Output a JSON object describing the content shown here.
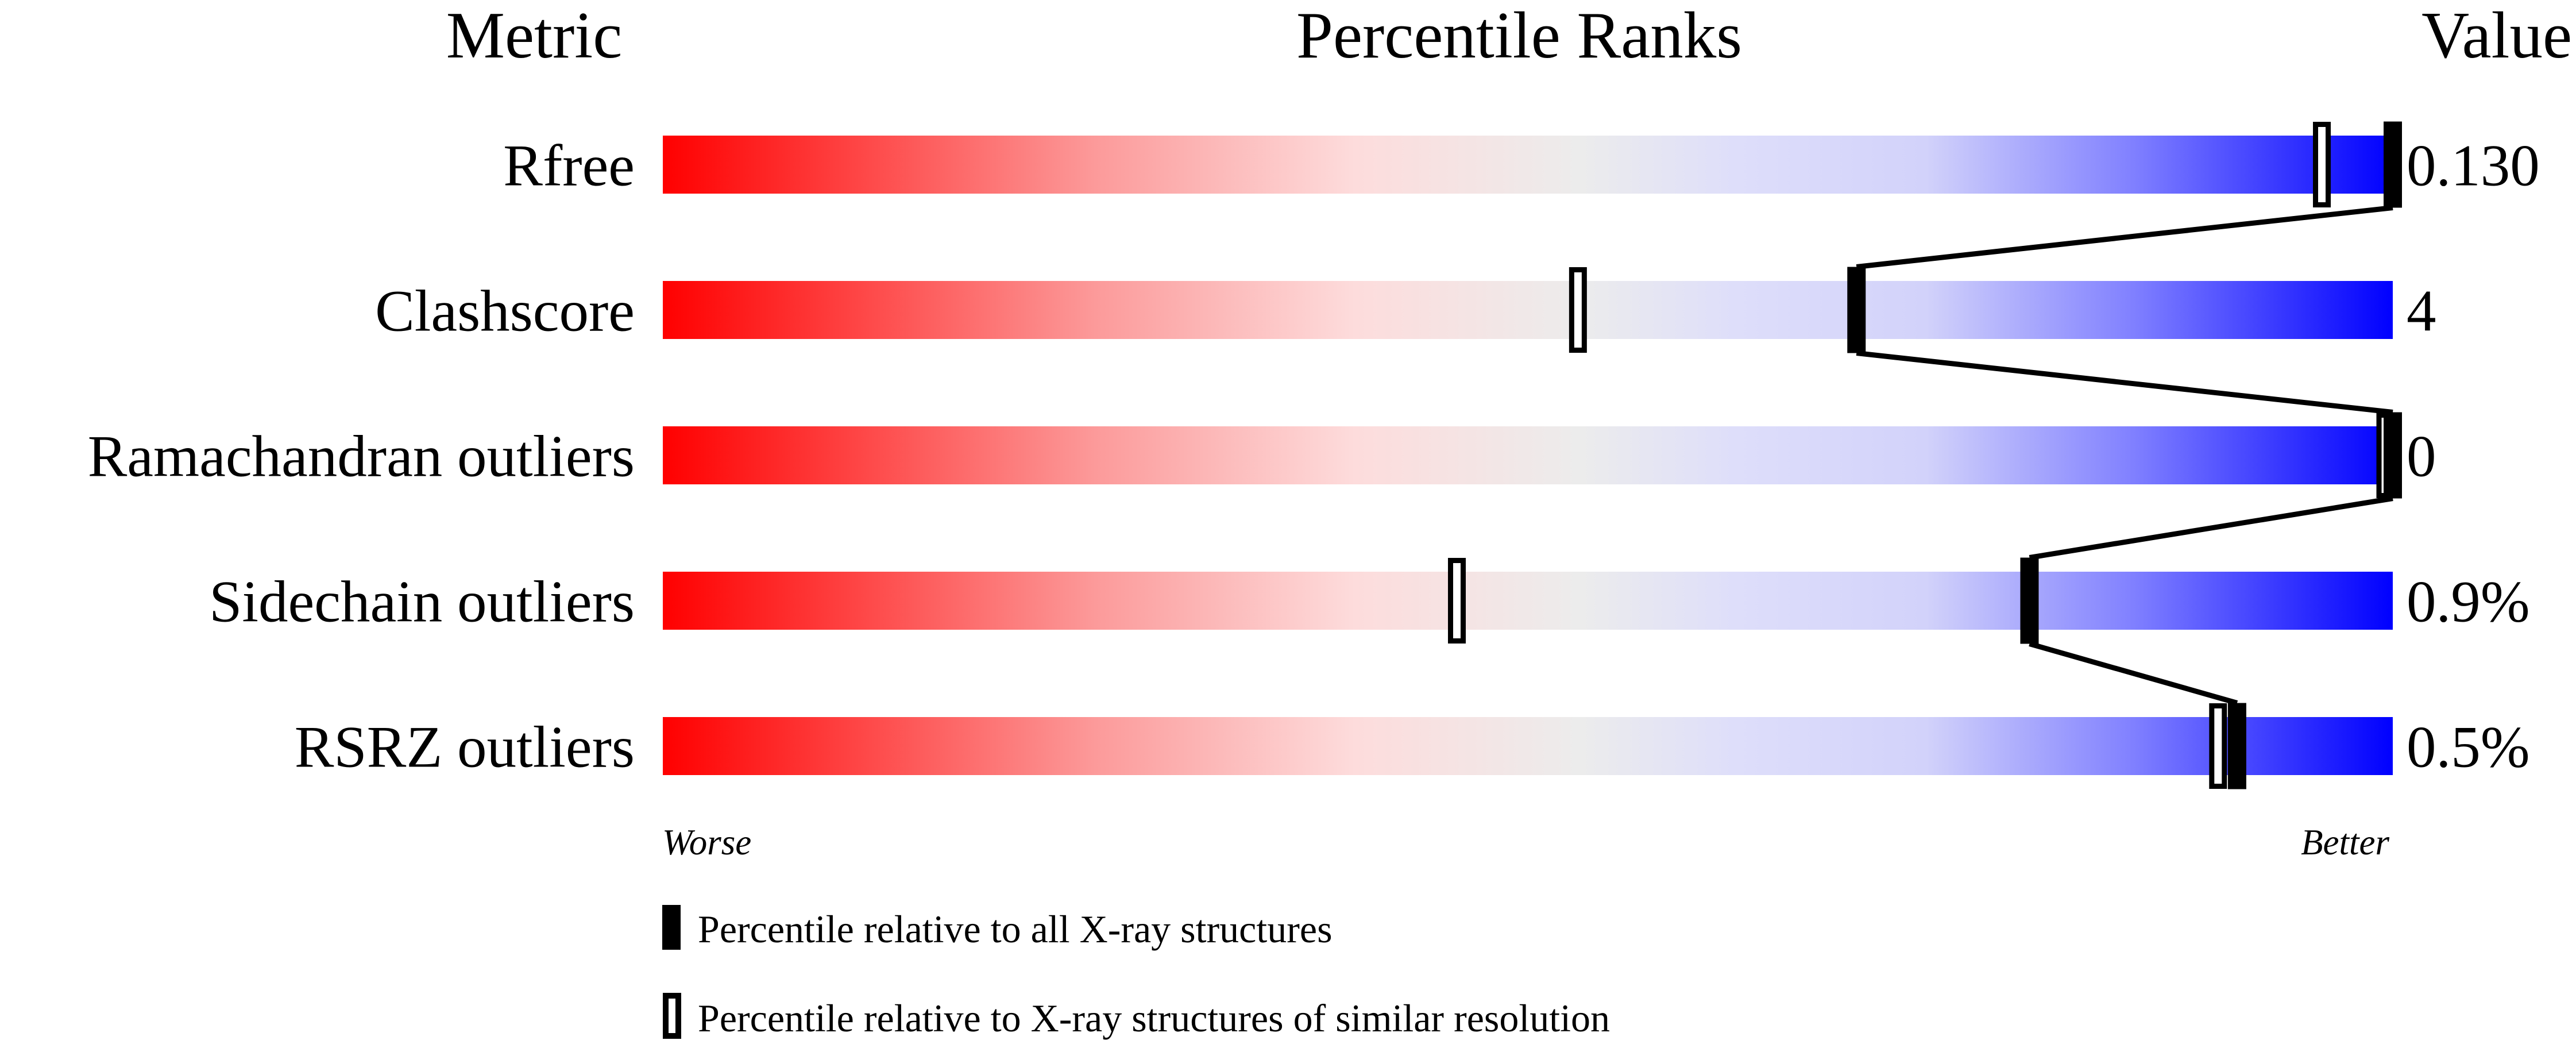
{
  "chart_data": {
    "type": "percentile-slider",
    "headers": {
      "metric": "Metric",
      "ranks": "Percentile Ranks",
      "value": "Value"
    },
    "xlim": [
      0,
      100
    ],
    "rows": [
      {
        "metric": "Rfree",
        "value": "0.130",
        "percentile_all": 100,
        "percentile_similar": 96
      },
      {
        "metric": "Clashscore",
        "value": "4",
        "percentile_all": 69,
        "percentile_similar": 53
      },
      {
        "metric": "Ramachandran outliers",
        "value": "0",
        "percentile_all": 100,
        "percentile_similar": 100
      },
      {
        "metric": "Sidechain outliers",
        "value": "0.9%",
        "percentile_all": 79,
        "percentile_similar": 46
      },
      {
        "metric": "RSRZ outliers",
        "value": "0.5%",
        "percentile_all": 91,
        "percentile_similar": 90
      }
    ],
    "axis_labels": {
      "left": "Worse",
      "right": "Better"
    },
    "gradient_colors": [
      "#ff0000",
      "#fddddd",
      "#ececec",
      "#dcdcfa",
      "#0000ff"
    ],
    "legend": [
      {
        "marker": "filled",
        "label": "Percentile relative to all X-ray structures"
      },
      {
        "marker": "open",
        "label": "Percentile relative to X-ray structures of similar resolution"
      }
    ]
  }
}
